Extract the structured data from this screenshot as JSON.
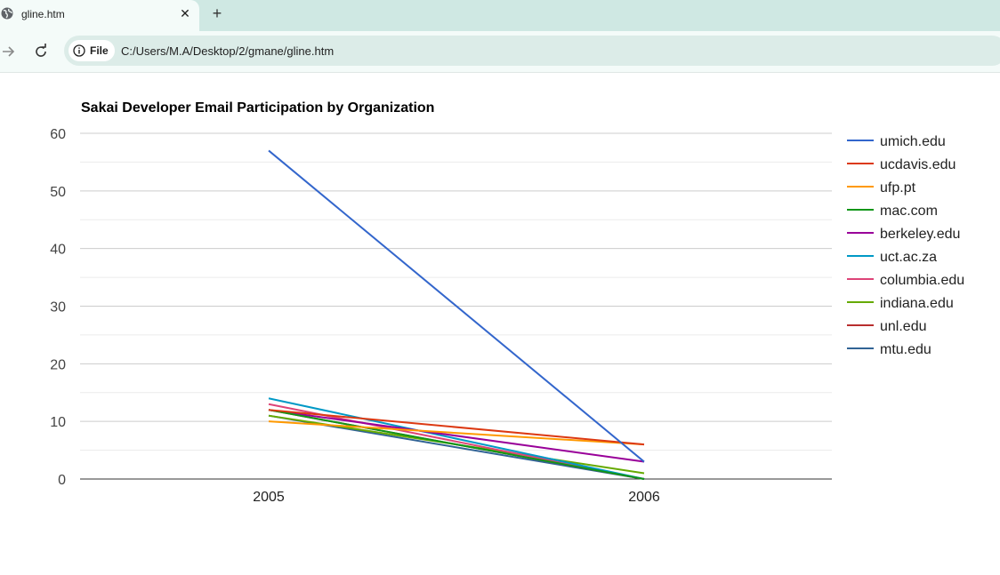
{
  "browser": {
    "tab_title": "gline.htm",
    "tab_close": "✕",
    "new_tab": "+",
    "site_chip": "File",
    "url": "C:/Users/M.A/Desktop/2/gmane/gline.htm"
  },
  "chart_data": {
    "type": "line",
    "title": "Sakai Developer Email Participation by Organization",
    "x": [
      "2005",
      "2006"
    ],
    "ylim": [
      0,
      60
    ],
    "yticks": [
      0,
      10,
      20,
      30,
      40,
      50,
      60
    ],
    "grid": true,
    "legend_position": "right",
    "series": [
      {
        "name": "umich.edu",
        "color": "#3366cc",
        "values": [
          57,
          3
        ]
      },
      {
        "name": "ucdavis.edu",
        "color": "#dc3912",
        "values": [
          12,
          6
        ]
      },
      {
        "name": "ufp.pt",
        "color": "#ff9900",
        "values": [
          10,
          6
        ]
      },
      {
        "name": "mac.com",
        "color": "#109618",
        "values": [
          12,
          0
        ]
      },
      {
        "name": "berkeley.edu",
        "color": "#990099",
        "values": [
          12,
          3
        ]
      },
      {
        "name": "uct.ac.za",
        "color": "#0099c6",
        "values": [
          14,
          0
        ]
      },
      {
        "name": "columbia.edu",
        "color": "#dd4477",
        "values": [
          13,
          0
        ]
      },
      {
        "name": "indiana.edu",
        "color": "#66aa00",
        "values": [
          11,
          1
        ]
      },
      {
        "name": "unl.edu",
        "color": "#b82e2e",
        "values": [
          12,
          0
        ]
      },
      {
        "name": "mtu.edu",
        "color": "#316395",
        "values": [
          11,
          0
        ]
      }
    ]
  }
}
